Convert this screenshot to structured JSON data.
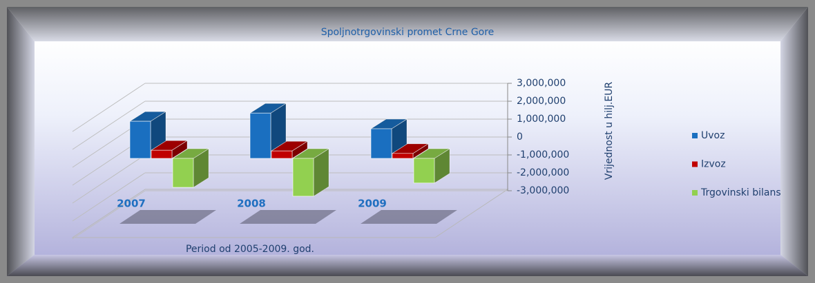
{
  "chart_data": {
    "type": "bar3d",
    "title": "Spoljnotrgovinski promet Crne Gore",
    "x_label": "Period od 2005-2009. god.",
    "y_label": "Vrijednost u hilj.EUR",
    "categories": [
      "2007",
      "2008",
      "2009"
    ],
    "series": [
      {
        "name": "Uvoz",
        "color": "#1a6fc0",
        "values": [
          2073000,
          2530000,
          1654000
        ]
      },
      {
        "name": "Izvoz",
        "color": "#c00000",
        "values": [
          455000,
          416000,
          277000
        ]
      },
      {
        "name": "Trgovinski bilans",
        "color": "#92d050",
        "values": [
          -1618000,
          -2114000,
          -1377000
        ]
      }
    ],
    "ylim": [
      -3000000,
      3000000
    ],
    "yticks": [
      {
        "value": 3000000,
        "label": "3,000,000"
      },
      {
        "value": 2000000,
        "label": "2,000,000"
      },
      {
        "value": 1000000,
        "label": "1,000,000"
      },
      0,
      {
        "value": -1000000,
        "label": "-1,000,000"
      },
      {
        "value": -2000000,
        "label": "-2,000,000"
      },
      {
        "value": -3000000,
        "label": "-3,000,000"
      }
    ],
    "grid": true,
    "legend": "right"
  }
}
